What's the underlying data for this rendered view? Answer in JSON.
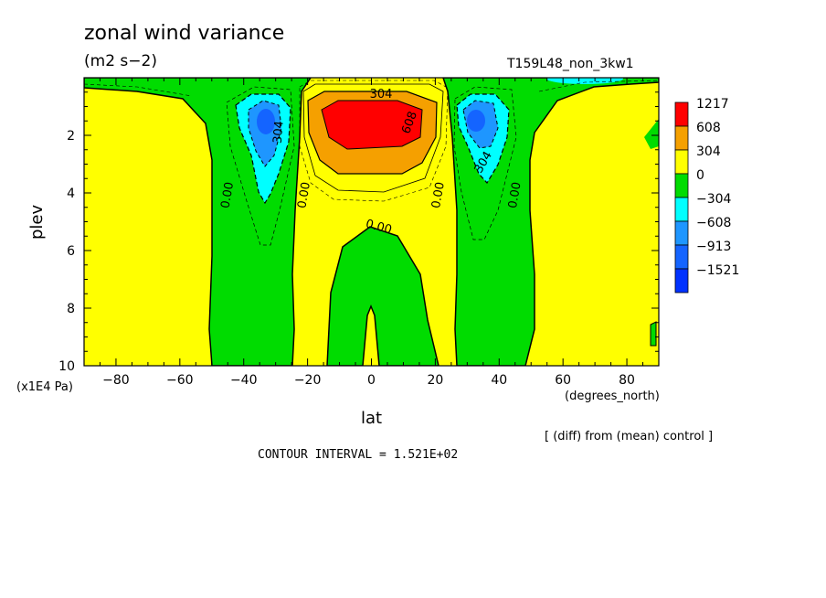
{
  "colors": {
    "red": "#ff0000",
    "orange": "#f5a000",
    "yellow": "#ffff00",
    "green": "#00dc00",
    "cyan": "#00ffff",
    "lightblue": "#1e96ff",
    "blue": "#1464ff",
    "darkblue": "#0032ff"
  },
  "text": {
    "title": "zonal wind variance",
    "units": "(m2 s−2)",
    "run": "T159L48_non_3kw1",
    "x_unit": "(degrees_north)",
    "y_unit": "(x1E4 Pa)",
    "x_label": "lat",
    "y_label": "plev",
    "diff_note": "[ (diff) from (mean) control ]",
    "interval": "CONTOUR INTERVAL = 1.521E+02"
  },
  "chart_data": {
    "type": "contour",
    "title": "zonal wind variance",
    "subtitle": "(m2 s−2)",
    "xlabel": "lat",
    "ylabel": "plev",
    "xlim": [
      -90,
      90
    ],
    "ylim": [
      10,
      0
    ],
    "x_ticks": [
      -80,
      -60,
      -40,
      -20,
      0,
      20,
      40,
      60,
      80
    ],
    "y_ticks": [
      2,
      4,
      6,
      8,
      10
    ],
    "legend": {
      "position": "right",
      "levels": [
        "1217",
        "608",
        "304",
        "0",
        "−304",
        "−608",
        "−913",
        "−1521"
      ],
      "colors": [
        "#ff0000",
        "#f5a000",
        "#ffff00",
        "#00dc00",
        "#00ffff",
        "#1e96ff",
        "#1464ff",
        "#0032ff"
      ]
    },
    "contour_labels": [
      {
        "text": "304",
        "lat": 3,
        "plev": 0.7
      },
      {
        "text": "608",
        "lat": 13,
        "plev": 1.6
      },
      {
        "text": "304",
        "lat": -28,
        "plev": 1.9
      },
      {
        "text": "304",
        "lat": 36,
        "plev": 3.0
      },
      {
        "text": "0.00",
        "lat": -44,
        "plev": 4.1
      },
      {
        "text": "0.00",
        "lat": -20,
        "plev": 4.1
      },
      {
        "text": "0.00",
        "lat": 22,
        "plev": 4.1
      },
      {
        "text": "0.00",
        "lat": 46,
        "plev": 4.1
      },
      {
        "text": "0.00",
        "lat": 2,
        "plev": 5.3
      }
    ]
  }
}
